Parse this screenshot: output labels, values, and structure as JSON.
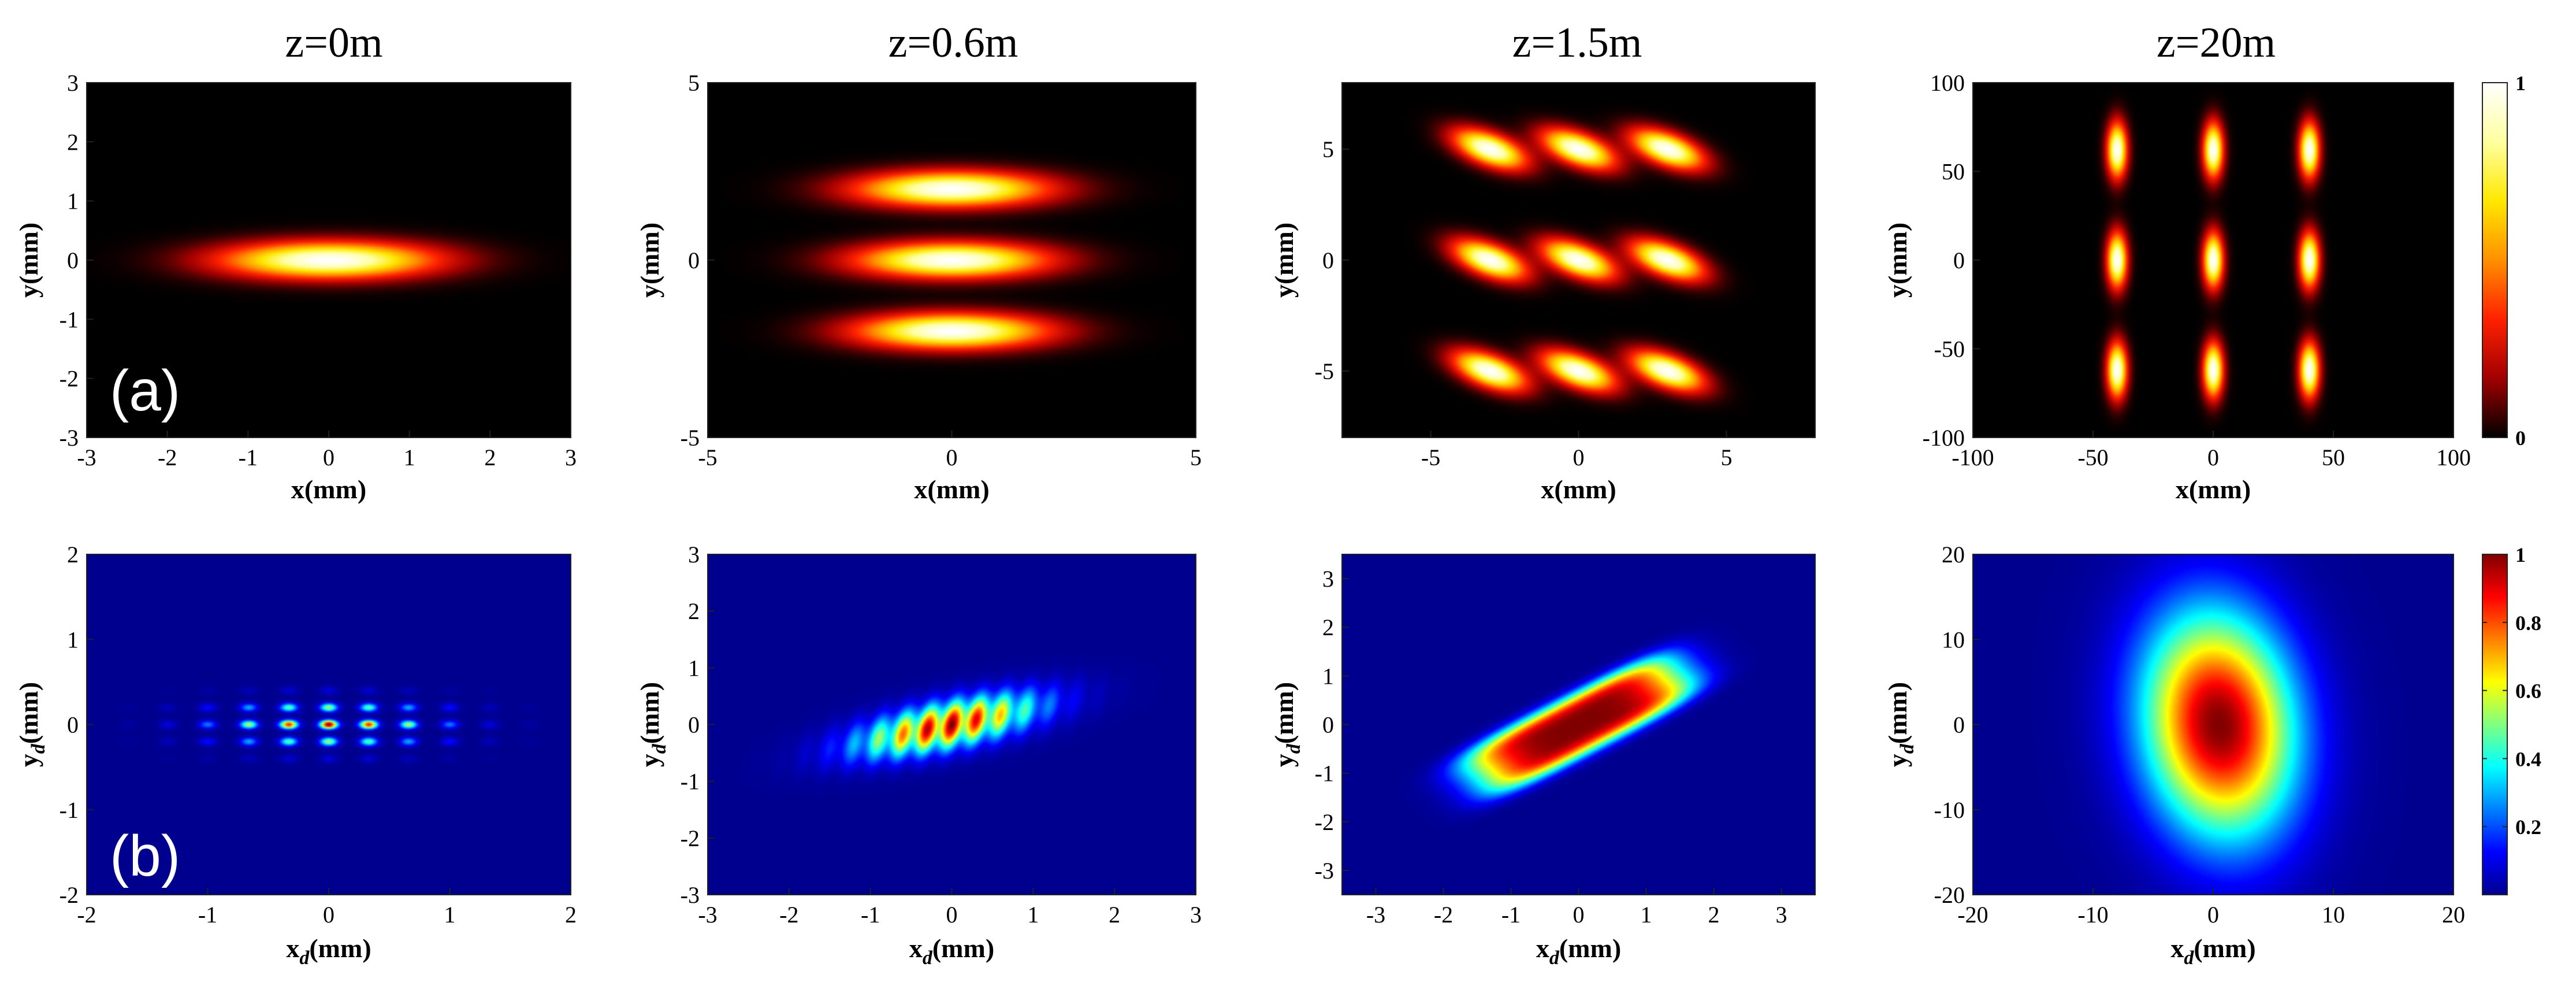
{
  "column_titles": [
    "z=0m",
    "z=0.6m",
    "z=1.5m",
    "z=20m"
  ],
  "row_labels": [
    "(a)",
    "(b)"
  ],
  "axis_labels": {
    "top_x": "x(mm)",
    "top_y": "y(mm)",
    "bottom_x_main": "x",
    "bottom_x_sub": "d",
    "bottom_y_main": "y",
    "bottom_y_sub": "d",
    "unit": "(mm)"
  },
  "colorbars": {
    "hot": {
      "ticks": [
        {
          "value": 0,
          "label": "0"
        },
        {
          "value": 1,
          "label": "1"
        }
      ],
      "colors": [
        "#000000",
        "#a00000",
        "#ff2000",
        "#ff9000",
        "#ffe800",
        "#ffffa0",
        "#ffffff"
      ]
    },
    "jet": {
      "ticks": [
        {
          "value": 0.2,
          "label": "0.2"
        },
        {
          "value": 0.4,
          "label": "0.4"
        },
        {
          "value": 0.6,
          "label": "0.6"
        },
        {
          "value": 0.8,
          "label": "0.8"
        },
        {
          "value": 1,
          "label": "1"
        }
      ],
      "colors": [
        "#00008f",
        "#0000ff",
        "#0080ff",
        "#00ffff",
        "#80ff80",
        "#ffff00",
        "#ff8000",
        "#ff0000",
        "#800000"
      ]
    }
  },
  "chart_data": [
    {
      "type": "heatmap",
      "row": 0,
      "col": 0,
      "colormap": "hot",
      "title": "z=0m",
      "xlabel": "x(mm)",
      "ylabel": "y(mm)",
      "xlim": [
        -3,
        3
      ],
      "ylim": [
        -3,
        3
      ],
      "xticks": [
        -3,
        -2,
        -1,
        0,
        1,
        2,
        3
      ],
      "xticklabels": [
        "-3",
        "-2",
        "-1",
        "0",
        "1",
        "2",
        "3"
      ],
      "yticks": [
        -3,
        -2,
        -1,
        0,
        1,
        2,
        3
      ],
      "yticklabels": [
        "-3",
        "-2",
        "-1",
        "0",
        "1",
        "2",
        "3"
      ],
      "spots": [
        {
          "x": 0,
          "y": 0,
          "sx": 1.3,
          "sy": 0.3,
          "angle": 0,
          "amp": 1
        }
      ]
    },
    {
      "type": "heatmap",
      "row": 0,
      "col": 1,
      "colormap": "hot",
      "title": "z=0.6m",
      "xlabel": "x(mm)",
      "ylabel": "y(mm)",
      "xlim": [
        -5,
        5
      ],
      "ylim": [
        -5,
        5
      ],
      "xticks": [
        -5,
        0,
        5
      ],
      "xticklabels": [
        "-5",
        "0",
        "5"
      ],
      "yticks": [
        -5,
        0,
        5
      ],
      "yticklabels": [
        "-5",
        "0",
        "5"
      ],
      "spots": [
        {
          "x": 0,
          "y": 2,
          "sx": 1.9,
          "sy": 0.48,
          "angle": 0,
          "amp": 1
        },
        {
          "x": 0,
          "y": 0,
          "sx": 1.9,
          "sy": 0.48,
          "angle": 0,
          "amp": 1
        },
        {
          "x": 0,
          "y": -2,
          "sx": 1.9,
          "sy": 0.48,
          "angle": 0,
          "amp": 1
        }
      ]
    },
    {
      "type": "heatmap",
      "row": 0,
      "col": 2,
      "colormap": "hot",
      "title": "z=1.5m",
      "xlabel": "x(mm)",
      "ylabel": "y(mm)",
      "xlim": [
        -8,
        8
      ],
      "ylim": [
        -8,
        8
      ],
      "xticks": [
        -5,
        0,
        5
      ],
      "xticklabels": [
        "-5",
        "0",
        "5"
      ],
      "yticks": [
        -5,
        0,
        5
      ],
      "yticklabels": [
        "-5",
        "0",
        "5"
      ],
      "spots": [
        {
          "x": -3,
          "y": 5,
          "sx": 1.3,
          "sy": 0.65,
          "angle": -30,
          "amp": 1
        },
        {
          "x": 0,
          "y": 5,
          "sx": 1.3,
          "sy": 0.65,
          "angle": -30,
          "amp": 1
        },
        {
          "x": 3,
          "y": 5,
          "sx": 1.3,
          "sy": 0.65,
          "angle": -30,
          "amp": 1
        },
        {
          "x": -3,
          "y": 0,
          "sx": 1.3,
          "sy": 0.65,
          "angle": -30,
          "amp": 1
        },
        {
          "x": 0,
          "y": 0,
          "sx": 1.3,
          "sy": 0.65,
          "angle": -30,
          "amp": 1
        },
        {
          "x": 3,
          "y": 0,
          "sx": 1.3,
          "sy": 0.65,
          "angle": -30,
          "amp": 1
        },
        {
          "x": -3,
          "y": -5,
          "sx": 1.3,
          "sy": 0.65,
          "angle": -30,
          "amp": 1
        },
        {
          "x": 0,
          "y": -5,
          "sx": 1.3,
          "sy": 0.65,
          "angle": -30,
          "amp": 1
        },
        {
          "x": 3,
          "y": -5,
          "sx": 1.3,
          "sy": 0.65,
          "angle": -30,
          "amp": 1
        }
      ]
    },
    {
      "type": "heatmap",
      "row": 0,
      "col": 3,
      "colormap": "hot",
      "title": "z=20m",
      "xlabel": "x(mm)",
      "ylabel": "y(mm)",
      "xlim": [
        -100,
        100
      ],
      "ylim": [
        -100,
        100
      ],
      "xticks": [
        -100,
        -50,
        0,
        50,
        100
      ],
      "xticklabels": [
        "-100",
        "-50",
        "0",
        "50",
        "100"
      ],
      "yticks": [
        -100,
        -50,
        0,
        50,
        100
      ],
      "yticklabels": [
        "-100",
        "-50",
        "0",
        "50",
        "100"
      ],
      "spots": [
        {
          "x": -40,
          "y": 62,
          "sx": 4,
          "sy": 15,
          "angle": 0,
          "amp": 1
        },
        {
          "x": 0,
          "y": 62,
          "sx": 4,
          "sy": 15,
          "angle": 0,
          "amp": 1
        },
        {
          "x": 40,
          "y": 62,
          "sx": 4,
          "sy": 15,
          "angle": 0,
          "amp": 1
        },
        {
          "x": -40,
          "y": 0,
          "sx": 4,
          "sy": 15,
          "angle": 0,
          "amp": 1
        },
        {
          "x": 0,
          "y": 0,
          "sx": 4,
          "sy": 15,
          "angle": 0,
          "amp": 1
        },
        {
          "x": 40,
          "y": 0,
          "sx": 4,
          "sy": 15,
          "angle": 0,
          "amp": 1
        },
        {
          "x": -40,
          "y": -62,
          "sx": 4,
          "sy": 15,
          "angle": 0,
          "amp": 1
        },
        {
          "x": 0,
          "y": -62,
          "sx": 4,
          "sy": 15,
          "angle": 0,
          "amp": 1
        },
        {
          "x": 40,
          "y": -62,
          "sx": 4,
          "sy": 15,
          "angle": 0,
          "amp": 1
        }
      ]
    },
    {
      "type": "heatmap",
      "row": 1,
      "col": 0,
      "colormap": "jet",
      "title": "",
      "xlabel": "x_d(mm)",
      "ylabel": "y_d(mm)",
      "xlim": [
        -2,
        2
      ],
      "ylim": [
        -2,
        2
      ],
      "xticks": [
        -2,
        -1,
        0,
        1,
        2
      ],
      "xticklabels": [
        "-2",
        "-1",
        "0",
        "1",
        "2"
      ],
      "yticks": [
        -2,
        -1,
        0,
        1,
        2
      ],
      "yticklabels": [
        "-2",
        "-1",
        "0",
        "1",
        "2"
      ],
      "lattice": {
        "xs": [
          -1.66,
          -1.33,
          -1.0,
          -0.66,
          -0.33,
          0.0,
          0.33,
          0.66,
          1.0,
          1.33,
          1.66
        ],
        "ys": [
          -0.4,
          -0.2,
          0.0,
          0.2,
          0.4
        ],
        "env_sx": 0.6,
        "env_sy": 0.18,
        "sx": 0.05,
        "sy": 0.035,
        "scale": 1.0
      }
    },
    {
      "type": "heatmap",
      "row": 1,
      "col": 1,
      "colormap": "jet",
      "title": "",
      "xlabel": "x_d(mm)",
      "ylabel": "y_d(mm)",
      "xlim": [
        -3,
        3
      ],
      "ylim": [
        -3,
        3
      ],
      "xticks": [
        -3,
        -2,
        -1,
        0,
        1,
        2,
        3
      ],
      "xticklabels": [
        "-3",
        "-2",
        "-1",
        "0",
        "1",
        "2",
        "3"
      ],
      "yticks": [
        -3,
        -2,
        -1,
        0,
        1,
        2,
        3
      ],
      "yticklabels": [
        "-3",
        "-2",
        "-1",
        "0",
        "1",
        "2",
        "3"
      ],
      "fringes": {
        "centers_x": [
          -2.7,
          -2.4,
          -2.1,
          -1.8,
          -1.5,
          -1.2,
          -0.9,
          -0.6,
          -0.3,
          0.0,
          0.3,
          0.6,
          0.9,
          1.2,
          1.5,
          1.8,
          2.1,
          2.4,
          2.7
        ],
        "slope": 0.28,
        "sx": 0.09,
        "sy": 0.3,
        "angle": -10,
        "env_center": -0.05,
        "env_s": 0.75
      }
    },
    {
      "type": "heatmap",
      "row": 1,
      "col": 2,
      "colormap": "jet",
      "title": "",
      "xlabel": "x_d(mm)",
      "ylabel": "y_d(mm)",
      "xlim": [
        -3.5,
        3.5
      ],
      "ylim": [
        -3.5,
        3.5
      ],
      "xticks": [
        -3,
        -2,
        -1,
        0,
        1,
        2,
        3
      ],
      "xticklabels": [
        "-3",
        "-2",
        "-1",
        "0",
        "1",
        "2",
        "3"
      ],
      "yticks": [
        -3,
        -2,
        -1,
        0,
        1,
        2,
        3
      ],
      "yticklabels": [
        "-3",
        "-2",
        "-1",
        "0",
        "1",
        "2",
        "3"
      ],
      "spots": [
        {
          "x": 0,
          "y": 0,
          "sx": 1.9,
          "sy": 0.55,
          "angle": 36,
          "amp": 1,
          "n": 4
        }
      ]
    },
    {
      "type": "heatmap",
      "row": 1,
      "col": 3,
      "colormap": "jet",
      "title": "",
      "xlabel": "x_d(mm)",
      "ylabel": "y_d(mm)",
      "xlim": [
        -20,
        20
      ],
      "ylim": [
        -20,
        20
      ],
      "xticks": [
        -20,
        -10,
        0,
        10,
        20
      ],
      "xticklabels": [
        "-20",
        "-10",
        "0",
        "10",
        "20"
      ],
      "yticks": [
        -20,
        -10,
        0,
        10,
        20
      ],
      "yticklabels": [
        "-20",
        "-10",
        "0",
        "10",
        "20"
      ],
      "spots": [
        {
          "x": 0.5,
          "y": 0,
          "sx": 6.2,
          "sy": 13,
          "angle": 4,
          "amp": 1,
          "n": 2
        }
      ]
    }
  ]
}
